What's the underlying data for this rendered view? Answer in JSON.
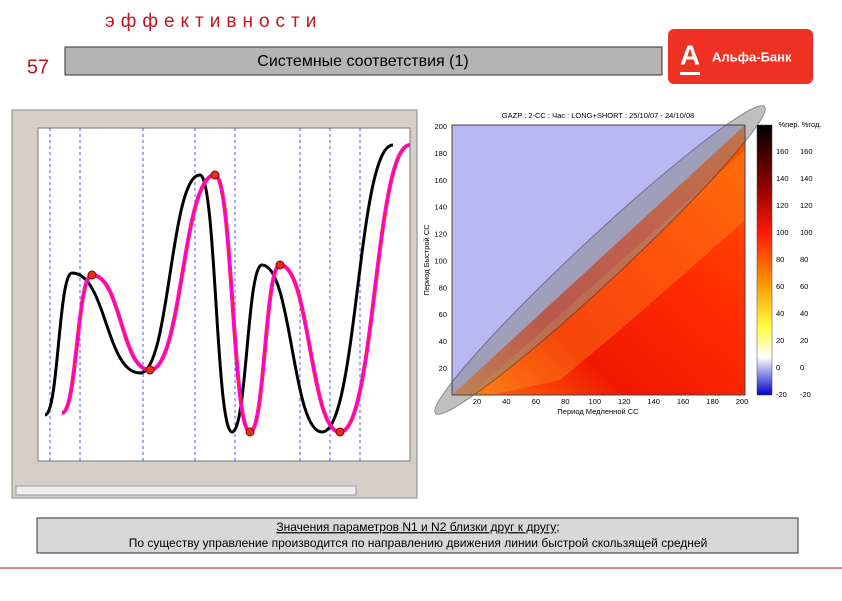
{
  "header": {
    "kicker": "эффективности",
    "slide_number": "57",
    "title": "Системные соответствия (1)",
    "logo": "Альфа-Банк"
  },
  "heatmap": {
    "title": "GAZP : 2-CC : Час : LONG+SHORT : 25/10/07 - 24/10/08",
    "x_label": "Период Медленной СС",
    "y_label": "Период Быстрой СС",
    "colorbar_label": "%пер. %год.",
    "xticks": [
      20,
      40,
      60,
      80,
      100,
      120,
      140,
      160,
      180,
      200
    ],
    "yticks": [
      20,
      40,
      60,
      80,
      100,
      120,
      140,
      160,
      180,
      200
    ],
    "colorbar_ticks": [
      -20,
      0,
      20,
      40,
      60,
      80,
      100,
      120,
      140,
      160
    ]
  },
  "caption": {
    "line1": "Значения параметров N1 и N2 близки друг к другу;",
    "line2": "По существу управление производится по направлению движения линии быстрой скользящей средней"
  }
}
